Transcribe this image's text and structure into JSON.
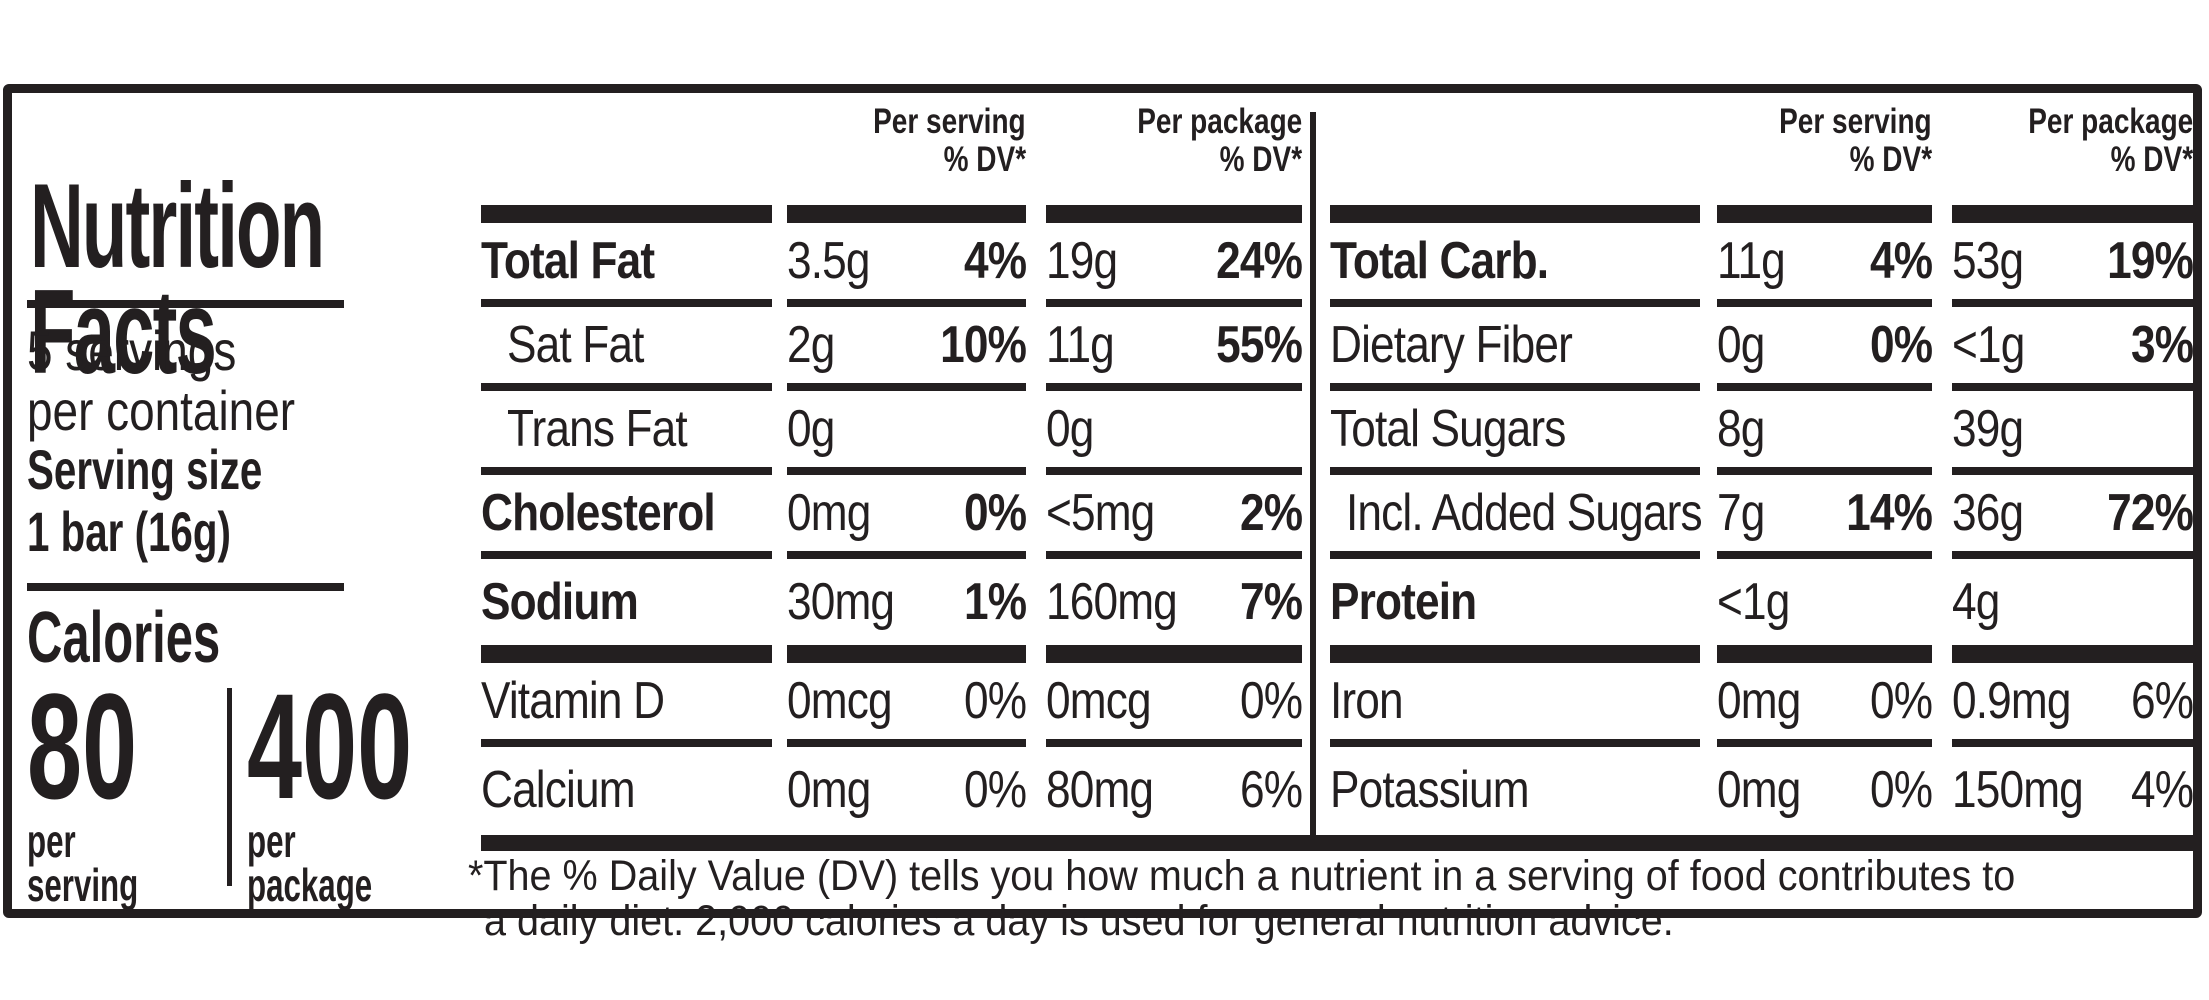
{
  "colors": {
    "ink": "#231f20",
    "background": "#ffffff"
  },
  "title": {
    "line1": "Nutrition",
    "line2": "Facts"
  },
  "servings_per_container": {
    "line1": "5 servings",
    "line2": "per container"
  },
  "serving_size": {
    "label": "Serving size",
    "value": "1 bar (16g)"
  },
  "calories": {
    "heading": "Calories",
    "per_serving": {
      "value": "80",
      "caption_line1": "per",
      "caption_line2": "serving"
    },
    "per_package": {
      "value": "400",
      "caption_line1": "per",
      "caption_line2": "package"
    }
  },
  "column_headers": {
    "per_serving_line1": "Per serving",
    "per_package_line1": "Per package",
    "dv_line2": "% DV*"
  },
  "left_table": {
    "rows": [
      {
        "name": "Total Fat",
        "bold": true,
        "indent": false,
        "serving": {
          "amount": "3.5g",
          "dv": "4%",
          "dv_bold": true
        },
        "package": {
          "amount": "19g",
          "dv": "24%",
          "dv_bold": true
        },
        "separator": "thin"
      },
      {
        "name": "Sat Fat",
        "bold": false,
        "indent": true,
        "serving": {
          "amount": "2g",
          "dv": "10%",
          "dv_bold": true
        },
        "package": {
          "amount": "11g",
          "dv": "55%",
          "dv_bold": true
        },
        "separator": "thin"
      },
      {
        "name": "Trans Fat",
        "bold": false,
        "indent": true,
        "serving": {
          "amount": "0g",
          "dv": "",
          "dv_bold": false
        },
        "package": {
          "amount": "0g",
          "dv": "",
          "dv_bold": false
        },
        "separator": "thin"
      },
      {
        "name": "Cholesterol",
        "bold": true,
        "indent": false,
        "serving": {
          "amount": "0mg",
          "dv": "0%",
          "dv_bold": true
        },
        "package": {
          "amount": "<5mg",
          "dv": "2%",
          "dv_bold": true
        },
        "separator": "thin"
      },
      {
        "name": "Sodium",
        "bold": true,
        "indent": false,
        "serving": {
          "amount": "30mg",
          "dv": "1%",
          "dv_bold": true
        },
        "package": {
          "amount": "160mg",
          "dv": "7%",
          "dv_bold": true
        },
        "separator": "thick"
      },
      {
        "name": "Vitamin D",
        "bold": false,
        "indent": false,
        "serving": {
          "amount": "0mcg",
          "dv": "0%",
          "dv_bold": false
        },
        "package": {
          "amount": "0mcg",
          "dv": "0%",
          "dv_bold": false
        },
        "separator": "thin"
      },
      {
        "name": "Calcium",
        "bold": false,
        "indent": false,
        "serving": {
          "amount": "0mg",
          "dv": "0%",
          "dv_bold": false
        },
        "package": {
          "amount": "80mg",
          "dv": "6%",
          "dv_bold": false
        },
        "separator": "none"
      }
    ]
  },
  "right_table": {
    "rows": [
      {
        "name": "Total Carb.",
        "bold": true,
        "indent": false,
        "serving": {
          "amount": "11g",
          "dv": "4%",
          "dv_bold": true
        },
        "package": {
          "amount": "53g",
          "dv": "19%",
          "dv_bold": true
        },
        "separator": "thin"
      },
      {
        "name": "Dietary Fiber",
        "bold": false,
        "indent": false,
        "serving": {
          "amount": "0g",
          "dv": "0%",
          "dv_bold": true
        },
        "package": {
          "amount": "<1g",
          "dv": "3%",
          "dv_bold": true
        },
        "separator": "thin"
      },
      {
        "name": "Total Sugars",
        "bold": false,
        "indent": false,
        "serving": {
          "amount": "8g",
          "dv": "",
          "dv_bold": false
        },
        "package": {
          "amount": "39g",
          "dv": "",
          "dv_bold": false
        },
        "separator": "thin"
      },
      {
        "name": "Incl. Added Sugars",
        "bold": false,
        "indent": true,
        "serving": {
          "amount": "7g",
          "dv": "14%",
          "dv_bold": true
        },
        "package": {
          "amount": "36g",
          "dv": "72%",
          "dv_bold": true
        },
        "separator": "thin"
      },
      {
        "name": "Protein",
        "bold": true,
        "indent": false,
        "serving": {
          "amount": "<1g",
          "dv": "",
          "dv_bold": false
        },
        "package": {
          "amount": "4g",
          "dv": "",
          "dv_bold": false
        },
        "separator": "thick"
      },
      {
        "name": "Iron",
        "bold": false,
        "indent": false,
        "serving": {
          "amount": "0mg",
          "dv": "0%",
          "dv_bold": false
        },
        "package": {
          "amount": "0.9mg",
          "dv": "6%",
          "dv_bold": false
        },
        "separator": "thin"
      },
      {
        "name": "Potassium",
        "bold": false,
        "indent": false,
        "serving": {
          "amount": "0mg",
          "dv": "0%",
          "dv_bold": false
        },
        "package": {
          "amount": "150mg",
          "dv": "4%",
          "dv_bold": false
        },
        "separator": "none"
      }
    ]
  },
  "footnote": {
    "line1": "*The % Daily Value (DV) tells you how much a nutrient in a serving of food contributes to",
    "line2": "a daily diet. 2,000 calories a day is used for general nutrition advice."
  }
}
